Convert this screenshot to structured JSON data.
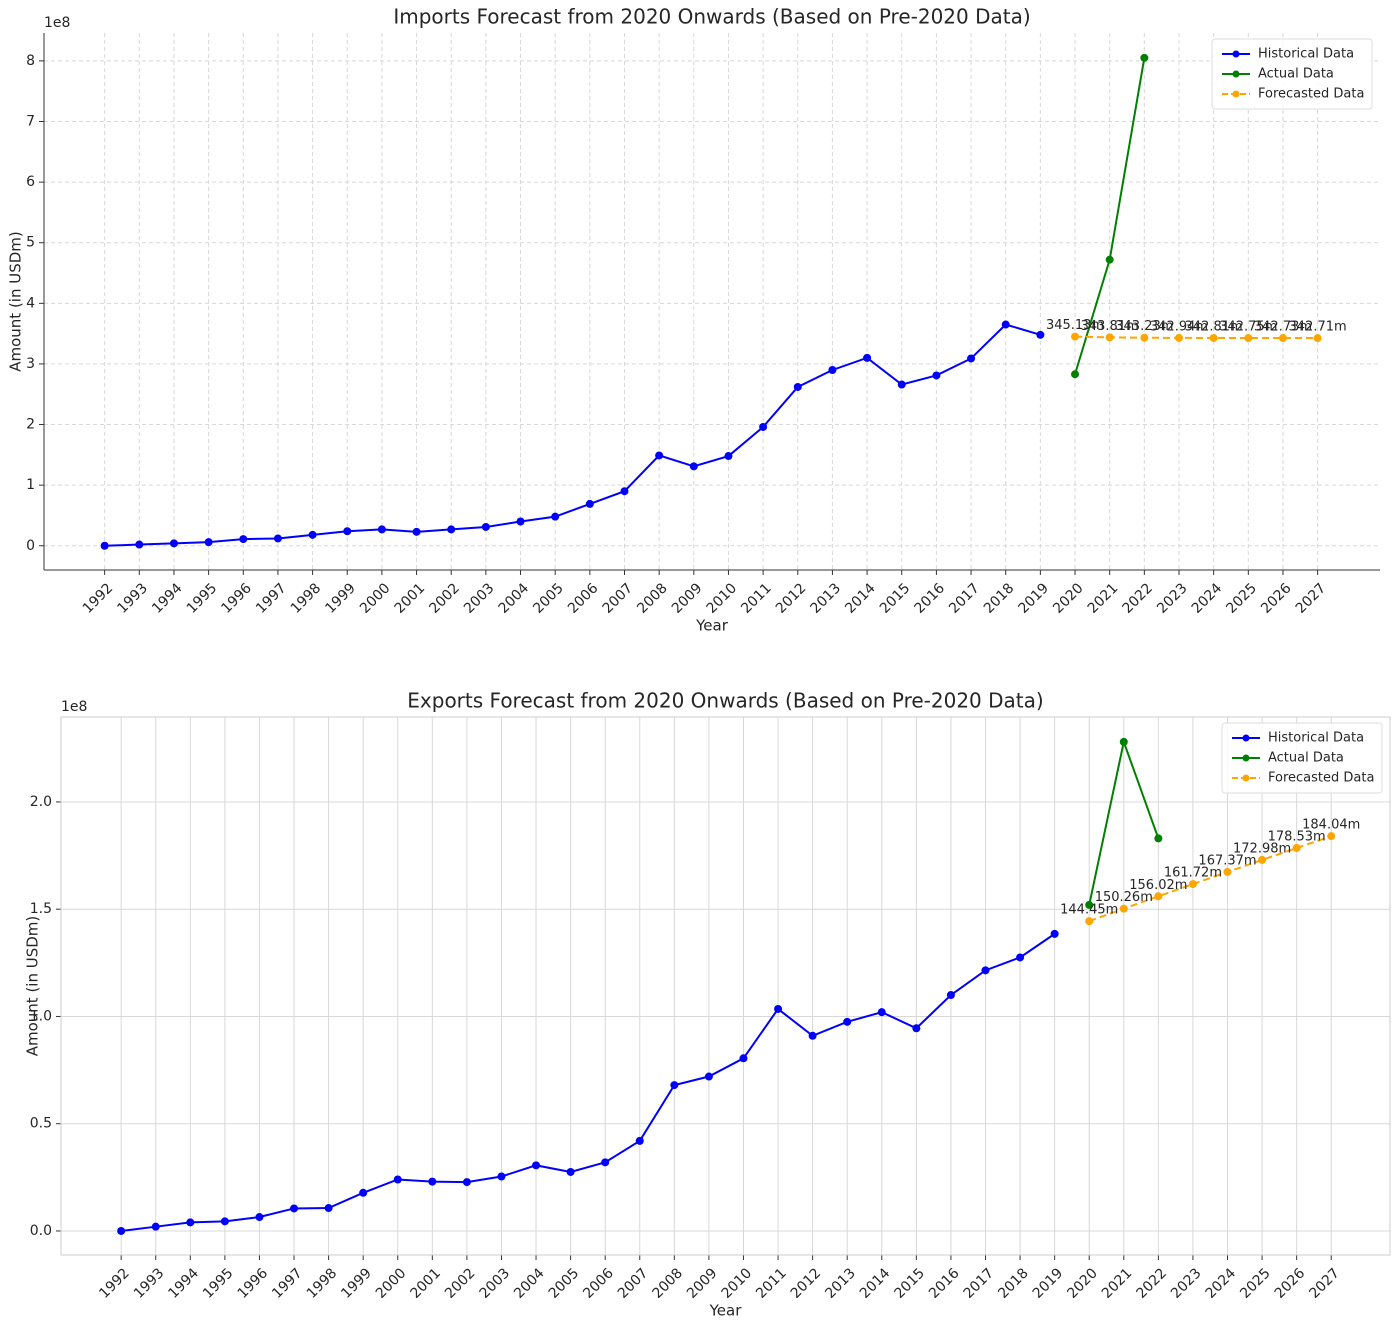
{
  "chart_data": [
    {
      "type": "line",
      "title": "Imports Forecast from 2020 Onwards (Based on Pre-2020 Data)",
      "xlabel": "Year",
      "ylabel": "Amount (in USDm)",
      "offset_label": "1e8",
      "x": [
        1992,
        1993,
        1994,
        1995,
        1996,
        1997,
        1998,
        1999,
        2000,
        2001,
        2002,
        2003,
        2004,
        2005,
        2006,
        2007,
        2008,
        2009,
        2010,
        2011,
        2012,
        2013,
        2014,
        2015,
        2016,
        2017,
        2018,
        2019,
        2020,
        2021,
        2022,
        2023,
        2024,
        2025,
        2026,
        2027
      ],
      "xticks": [
        1992,
        1993,
        1994,
        1995,
        1996,
        1997,
        1998,
        1999,
        2000,
        2001,
        2002,
        2003,
        2004,
        2005,
        2006,
        2007,
        2008,
        2009,
        2010,
        2011,
        2012,
        2013,
        2014,
        2015,
        2016,
        2017,
        2018,
        2019,
        2020,
        2021,
        2022,
        2023,
        2024,
        2025,
        2026,
        2027
      ],
      "xlim": [
        1990.25,
        2028.8
      ],
      "ylim": [
        -40000000,
        846000000
      ],
      "yticks": [
        0,
        {
          "value": 100000000,
          "label": "1"
        },
        {
          "value": 200000000,
          "label": "2"
        },
        {
          "value": 300000000,
          "label": "3"
        },
        {
          "value": 400000000,
          "label": "4"
        },
        {
          "value": 500000000,
          "label": "5"
        },
        {
          "value": 600000000,
          "label": "6"
        },
        {
          "value": 700000000,
          "label": "7"
        },
        {
          "value": 800000000,
          "label": "8"
        }
      ],
      "grid": true,
      "grid_style": "dashed",
      "legend": "upper right",
      "series": [
        {
          "name": "Historical Data",
          "color": "#0000ff",
          "linestyle": "solid",
          "values": [
            0,
            2000000,
            4000000,
            6000000,
            11000000,
            12000000,
            18000000,
            24000000,
            27000000,
            23000000,
            27000000,
            31000000,
            40000000,
            48000000,
            69000000,
            90000000,
            149000000,
            131000000,
            148000000,
            196000000,
            262000000,
            290000000,
            310000000,
            266000000,
            281000000,
            309000000,
            365000000,
            348000000,
            null,
            null,
            null,
            null,
            null,
            null,
            null,
            null
          ]
        },
        {
          "name": "Actual Data",
          "color": "#008000",
          "linestyle": "solid",
          "values": [
            null,
            null,
            null,
            null,
            null,
            null,
            null,
            null,
            null,
            null,
            null,
            null,
            null,
            null,
            null,
            null,
            null,
            null,
            null,
            null,
            null,
            null,
            null,
            null,
            null,
            null,
            null,
            null,
            283000000,
            472000000,
            805000000,
            null,
            null,
            null,
            null,
            null
          ]
        },
        {
          "name": "Forecasted Data",
          "color": "#ffa500",
          "linestyle": "dashed",
          "values": [
            null,
            null,
            null,
            null,
            null,
            null,
            null,
            null,
            null,
            null,
            null,
            null,
            null,
            null,
            null,
            null,
            null,
            null,
            null,
            null,
            null,
            null,
            null,
            null,
            null,
            null,
            null,
            null,
            345130000,
            343810000,
            343230000,
            342940000,
            342810000,
            342750000,
            342730000,
            342710000
          ],
          "value_labels": [
            null,
            null,
            null,
            null,
            null,
            null,
            null,
            null,
            null,
            null,
            null,
            null,
            null,
            null,
            null,
            null,
            null,
            null,
            null,
            null,
            null,
            null,
            null,
            null,
            null,
            null,
            null,
            null,
            "345.13m",
            "343.81m",
            "343.23m",
            "342.94m",
            "342.81m",
            "342.75m",
            "342.73m",
            "342.71m"
          ]
        }
      ]
    },
    {
      "type": "line",
      "title": "Exports Forecast from 2020 Onwards (Based on Pre-2020 Data)",
      "xlabel": "Year",
      "ylabel": "Amount (in USDm)",
      "offset_label": "1e8",
      "x": [
        1992,
        1993,
        1994,
        1995,
        1996,
        1997,
        1998,
        1999,
        2000,
        2001,
        2002,
        2003,
        2004,
        2005,
        2006,
        2007,
        2008,
        2009,
        2010,
        2011,
        2012,
        2013,
        2014,
        2015,
        2016,
        2017,
        2018,
        2019,
        2020,
        2021,
        2022,
        2023,
        2024,
        2025,
        2026,
        2027
      ],
      "xticks": [
        1992,
        1993,
        1994,
        1995,
        1996,
        1997,
        1998,
        1999,
        2000,
        2001,
        2002,
        2003,
        2004,
        2005,
        2006,
        2007,
        2008,
        2009,
        2010,
        2011,
        2012,
        2013,
        2014,
        2015,
        2016,
        2017,
        2018,
        2019,
        2020,
        2021,
        2022,
        2023,
        2024,
        2025,
        2026,
        2027
      ],
      "xlim": [
        1990.26,
        2028.7
      ],
      "ylim": [
        -11200000,
        239600000
      ],
      "yticks": [
        {
          "value": 0,
          "label": "0.0"
        },
        {
          "value": 50000000,
          "label": "0.5"
        },
        {
          "value": 100000000,
          "label": "1.0"
        },
        {
          "value": 150000000,
          "label": "1.5"
        },
        {
          "value": 200000000,
          "label": "2.0"
        }
      ],
      "grid": true,
      "grid_style": "solid",
      "legend": "upper right",
      "series": [
        {
          "name": "Historical Data",
          "color": "#0000ff",
          "linestyle": "solid",
          "values": [
            0,
            2000000,
            4000000,
            4500000,
            6500000,
            10500000,
            10700000,
            17800000,
            24000000,
            23000000,
            22800000,
            25400000,
            30600000,
            27500000,
            32000000,
            42000000,
            68000000,
            72000000,
            80500000,
            103500000,
            91000000,
            97500000,
            102000000,
            94500000,
            110000000,
            121500000,
            127500000,
            138500000,
            null,
            null,
            null,
            null,
            null,
            null,
            null,
            null
          ]
        },
        {
          "name": "Actual Data",
          "color": "#008000",
          "linestyle": "solid",
          "values": [
            null,
            null,
            null,
            null,
            null,
            null,
            null,
            null,
            null,
            null,
            null,
            null,
            null,
            null,
            null,
            null,
            null,
            null,
            null,
            null,
            null,
            null,
            null,
            null,
            null,
            null,
            null,
            null,
            152000000,
            228000000,
            183000000,
            null,
            null,
            null,
            null,
            null
          ]
        },
        {
          "name": "Forecasted Data",
          "color": "#ffa500",
          "linestyle": "dashed",
          "values": [
            null,
            null,
            null,
            null,
            null,
            null,
            null,
            null,
            null,
            null,
            null,
            null,
            null,
            null,
            null,
            null,
            null,
            null,
            null,
            null,
            null,
            null,
            null,
            null,
            null,
            null,
            null,
            null,
            144450000,
            150260000,
            156020000,
            161720000,
            167370000,
            172980000,
            178530000,
            184040000
          ],
          "value_labels": [
            null,
            null,
            null,
            null,
            null,
            null,
            null,
            null,
            null,
            null,
            null,
            null,
            null,
            null,
            null,
            null,
            null,
            null,
            null,
            null,
            null,
            null,
            null,
            null,
            null,
            null,
            null,
            null,
            "144.45m",
            "150.26m",
            "156.02m",
            "161.72m",
            "167.37m",
            "172.98m",
            "178.53m",
            "184.04m"
          ]
        }
      ]
    }
  ]
}
